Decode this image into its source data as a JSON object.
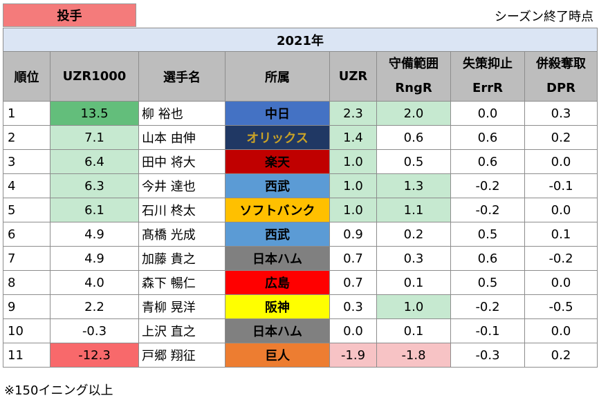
{
  "position_tag": "投手",
  "note_top_right": "シーズン終了時点",
  "year": "2021年",
  "headers": {
    "rank": "順位",
    "uzr1000": "UZR1000",
    "player": "選手名",
    "team": "所属",
    "uzr": "UZR",
    "rngr_top": "守備範囲",
    "rngr_bottom": "RngR",
    "errr_top": "失策抑止",
    "errr_bottom": "ErrR",
    "dpr_top": "併殺奪取",
    "dpr_bottom": "DPR"
  },
  "rows": [
    {
      "rank": "1",
      "uzr1000": "13.5",
      "player": "柳 裕也",
      "team": "中日",
      "uzr": "2.3",
      "rngr": "2.0",
      "errr": "0.0",
      "dpr": "0.3"
    },
    {
      "rank": "2",
      "uzr1000": "7.1",
      "player": "山本 由伸",
      "team": "オリックス",
      "uzr": "1.4",
      "rngr": "0.6",
      "errr": "0.6",
      "dpr": "0.2"
    },
    {
      "rank": "3",
      "uzr1000": "6.4",
      "player": "田中 将大",
      "team": "楽天",
      "uzr": "1.0",
      "rngr": "0.5",
      "errr": "0.6",
      "dpr": "0.0"
    },
    {
      "rank": "4",
      "uzr1000": "6.3",
      "player": "今井 達也",
      "team": "西武",
      "uzr": "1.0",
      "rngr": "1.3",
      "errr": "-0.2",
      "dpr": "-0.1"
    },
    {
      "rank": "5",
      "uzr1000": "6.1",
      "player": "石川 柊太",
      "team": "ソフトバンク",
      "uzr": "1.0",
      "rngr": "1.1",
      "errr": "-0.2",
      "dpr": "0.0"
    },
    {
      "rank": "6",
      "uzr1000": "4.9",
      "player": "髙橋 光成",
      "team": "西武",
      "uzr": "0.9",
      "rngr": "0.2",
      "errr": "0.5",
      "dpr": "0.1"
    },
    {
      "rank": "7",
      "uzr1000": "4.9",
      "player": "加藤 貴之",
      "team": "日本ハム",
      "uzr": "0.7",
      "rngr": "0.3",
      "errr": "0.6",
      "dpr": "-0.2"
    },
    {
      "rank": "8",
      "uzr1000": "4.0",
      "player": "森下 暢仁",
      "team": "広島",
      "uzr": "0.7",
      "rngr": "0.1",
      "errr": "0.5",
      "dpr": "0.0"
    },
    {
      "rank": "9",
      "uzr1000": "2.2",
      "player": "青柳 晃洋",
      "team": "阪神",
      "uzr": "0.3",
      "rngr": "1.0",
      "errr": "-0.2",
      "dpr": "-0.5"
    },
    {
      "rank": "10",
      "uzr1000": "-0.3",
      "player": "上沢 直之",
      "team": "日本ハム",
      "uzr": "0.0",
      "rngr": "0.1",
      "errr": "-0.1",
      "dpr": "0.0"
    },
    {
      "rank": "11",
      "uzr1000": "-12.3",
      "player": "戸郷 翔征",
      "team": "巨人",
      "uzr": "-1.9",
      "rngr": "-1.8",
      "errr": "-0.3",
      "dpr": "0.2"
    }
  ],
  "team_colors": {
    "中日": {
      "bg": "#4472c4",
      "fg": "#000000"
    },
    "オリックス": {
      "bg": "#203864",
      "fg": "#c9a227"
    },
    "楽天": {
      "bg": "#c00000",
      "fg": "#000000"
    },
    "西武": {
      "bg": "#5b9bd5",
      "fg": "#000000"
    },
    "ソフトバンク": {
      "bg": "#ffc000",
      "fg": "#000000"
    },
    "日本ハム": {
      "bg": "#808080",
      "fg": "#000000"
    },
    "広島": {
      "bg": "#ff0000",
      "fg": "#000000"
    },
    "阪神": {
      "bg": "#ffff00",
      "fg": "#000000"
    },
    "巨人": {
      "bg": "#ed7d31",
      "fg": "#000000"
    }
  },
  "footnote": "※150イニング以上"
}
